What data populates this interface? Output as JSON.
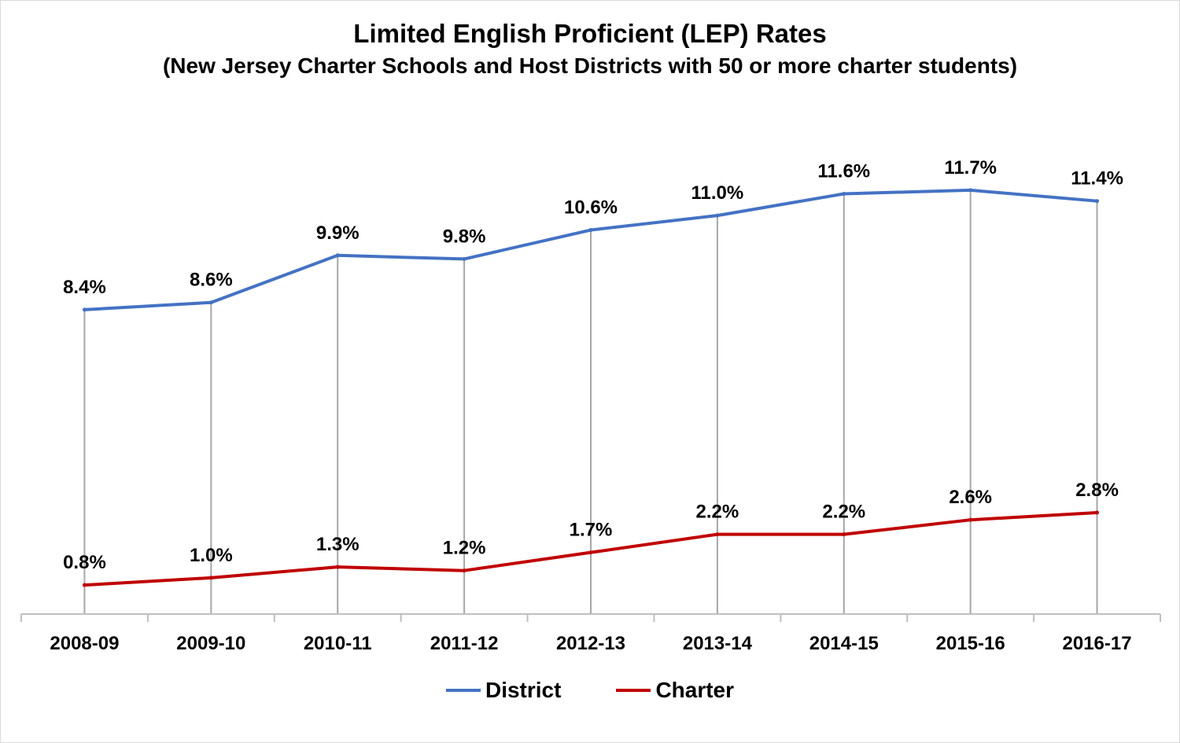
{
  "chart_data": {
    "type": "line",
    "title": "Limited English Proficient (LEP) Rates",
    "subtitle": "(New Jersey Charter Schools and Host Districts with 50 or more charter students)",
    "xlabel": "",
    "ylabel": "",
    "categories": [
      "2008-09",
      "2009-10",
      "2010-11",
      "2011-12",
      "2012-13",
      "2013-14",
      "2014-15",
      "2015-16",
      "2016-17"
    ],
    "ylim": [
      0,
      14
    ],
    "grid": "vertical drop lines",
    "legend_position": "bottom",
    "series": [
      {
        "name": "District",
        "color": "#4472c4",
        "values": [
          8.4,
          8.6,
          9.9,
          9.8,
          10.6,
          11.0,
          11.6,
          11.7,
          11.4
        ],
        "labels": [
          "8.4%",
          "8.6%",
          "9.9%",
          "9.8%",
          "10.6%",
          "11.0%",
          "11.6%",
          "11.7%",
          "11.4%"
        ]
      },
      {
        "name": "Charter",
        "color": "#c00000",
        "values": [
          0.8,
          1.0,
          1.3,
          1.2,
          1.7,
          2.2,
          2.2,
          2.6,
          2.8
        ],
        "labels": [
          "0.8%",
          "1.0%",
          "1.3%",
          "1.2%",
          "1.7%",
          "2.2%",
          "2.2%",
          "2.6%",
          "2.8%"
        ]
      }
    ]
  }
}
